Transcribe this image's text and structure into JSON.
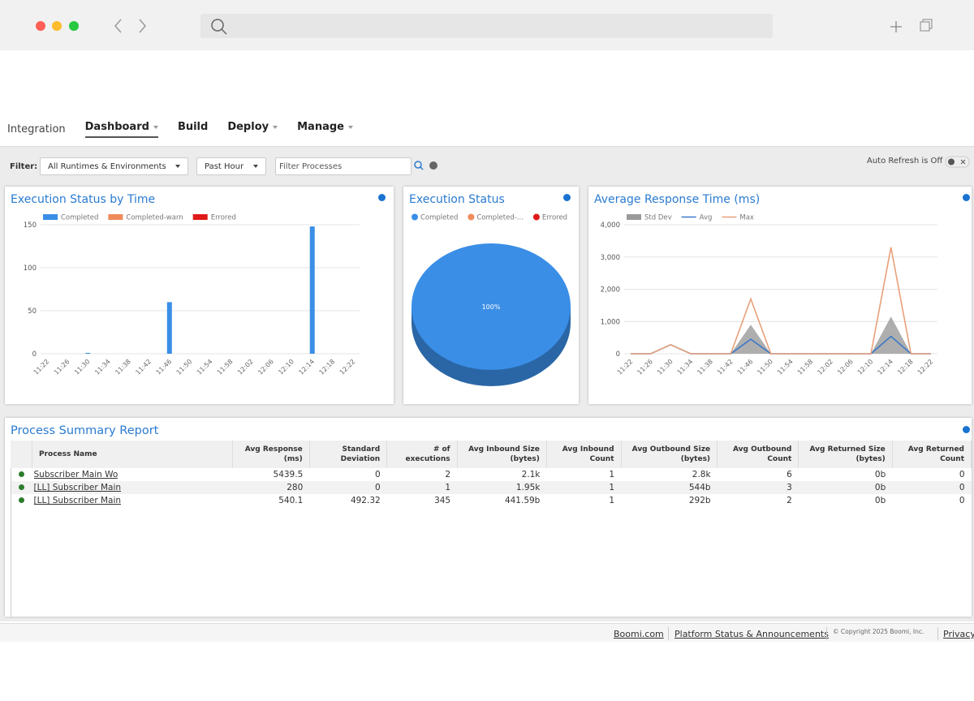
{
  "nav": {
    "app": "Integration",
    "items": [
      {
        "label": "Dashboard",
        "dropdown": true,
        "active": true
      },
      {
        "label": "Build",
        "dropdown": false,
        "active": false
      },
      {
        "label": "Deploy",
        "dropdown": true,
        "active": false
      },
      {
        "label": "Manage",
        "dropdown": true,
        "active": false
      }
    ]
  },
  "filter": {
    "label": "Filter:",
    "runtime": "All Runtimes & Environments",
    "period": "Past Hour",
    "search_placeholder": "Filter Processes",
    "auto_refresh": "Auto Refresh is Off"
  },
  "chart_data": [
    {
      "type": "bar",
      "title": "Execution Status by Time",
      "categories": [
        "11:22",
        "11:26",
        "11:30",
        "11:34",
        "11:38",
        "11:42",
        "11:46",
        "11:50",
        "11:54",
        "11:58",
        "12:02",
        "12:06",
        "12:10",
        "12:14",
        "12:18",
        "12:22"
      ],
      "series": [
        {
          "name": "Completed",
          "color": "#3a8ee6",
          "values": [
            0,
            0,
            1,
            0,
            0,
            0,
            60,
            0,
            0,
            0,
            0,
            0,
            0,
            148,
            0,
            0
          ]
        },
        {
          "name": "Completed-warn",
          "color": "#ef8b5b",
          "values": [
            0,
            0,
            0,
            0,
            0,
            0,
            0,
            0,
            0,
            0,
            0,
            0,
            0,
            0,
            0,
            0
          ]
        },
        {
          "name": "Errored",
          "color": "#e01919",
          "values": [
            0,
            0,
            0,
            0,
            0,
            0,
            0,
            0,
            0,
            0,
            0,
            0,
            0,
            0,
            0,
            0
          ]
        }
      ],
      "ylim": [
        0,
        150
      ],
      "yticks": [
        0,
        50,
        100,
        150
      ],
      "grid": true
    },
    {
      "type": "pie",
      "title": "Execution Status",
      "categories": [
        "Completed",
        "Completed-...",
        "Errored"
      ],
      "values": [
        100,
        0,
        0
      ],
      "value_labels": [
        "100%",
        null,
        null
      ],
      "colors": [
        "#3a8ee6",
        "#ef8b5b",
        "#e01919"
      ]
    },
    {
      "type": "line",
      "title": "Average Response Time (ms)",
      "categories": [
        "11:22",
        "11:26",
        "11:30",
        "11:34",
        "11:38",
        "11:42",
        "11:46",
        "11:50",
        "11:54",
        "11:58",
        "12:02",
        "12:06",
        "12:10",
        "12:14",
        "12:18",
        "12:22"
      ],
      "series": [
        {
          "name": "Std Dev",
          "color": "#9a9a9a",
          "style": "area",
          "values": [
            0,
            0,
            0,
            0,
            0,
            0,
            900,
            0,
            0,
            0,
            0,
            0,
            0,
            1150,
            0,
            0
          ]
        },
        {
          "name": "Avg",
          "color": "#3a78c9",
          "style": "line",
          "values": [
            0,
            0,
            280,
            0,
            0,
            0,
            450,
            0,
            0,
            0,
            0,
            0,
            0,
            540,
            0,
            0
          ]
        },
        {
          "name": "Max",
          "color": "#e8a07a",
          "style": "line",
          "values": [
            0,
            0,
            280,
            0,
            0,
            0,
            1700,
            0,
            0,
            0,
            0,
            0,
            0,
            3300,
            0,
            0
          ]
        }
      ],
      "ylim": [
        0,
        4000
      ],
      "yticks": [
        0,
        {
          "value": 1000,
          "label": "1,000"
        },
        {
          "value": 2000,
          "label": "2,000"
        },
        {
          "value": 3000,
          "label": "3,000"
        },
        {
          "value": 4000,
          "label": "4,000"
        }
      ],
      "grid": true
    }
  ],
  "report": {
    "title": "Process Summary Report",
    "columns": [
      "Process Name",
      "Avg Response (ms)",
      "Standard Deviation",
      "# of executions",
      "Avg Inbound Size (bytes)",
      "Avg Inbound Count",
      "Avg Outbound Size (bytes)",
      "Avg Outbound Count",
      "Avg Returned Size (bytes)",
      "Avg Returned Count"
    ],
    "rows": [
      [
        "Subscriber Main Wo",
        5439.5,
        0,
        2,
        "2.1k",
        1,
        "2.8k",
        6,
        "0b",
        0
      ],
      [
        "[LL] Subscriber Main",
        280,
        0,
        1,
        "1.95k",
        1,
        "544b",
        3,
        "0b",
        0
      ],
      [
        "[LL] Subscriber Main",
        540.1,
        492.32,
        345,
        "441.59b",
        1,
        "292b",
        2,
        "0b",
        0
      ]
    ]
  },
  "footer": {
    "links": [
      "Boomi.com",
      "Platform Status & Announcements"
    ],
    "copyright": "© Copyright 2025 Boomi, Inc.",
    "privacy": "Privacy"
  }
}
